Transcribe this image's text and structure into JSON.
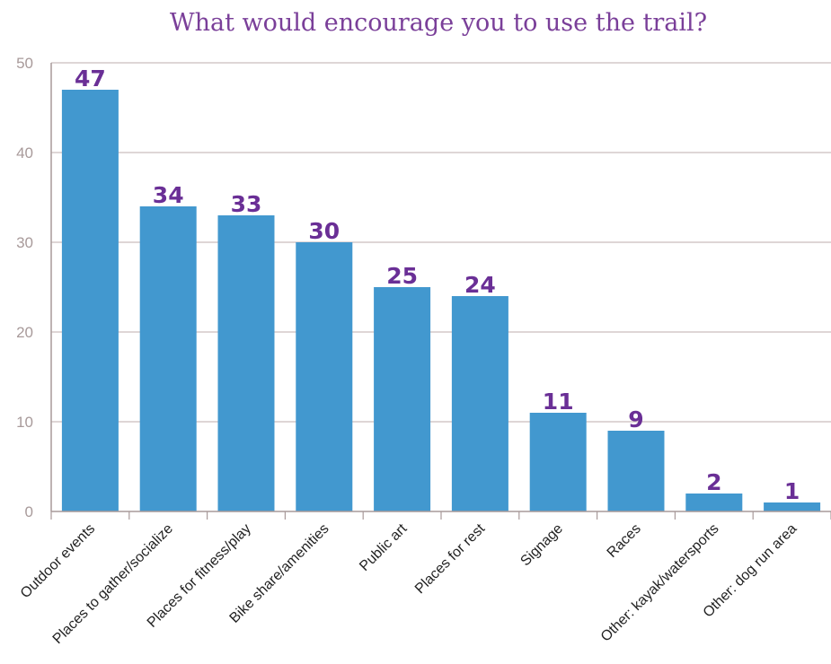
{
  "chart_data": {
    "type": "bar",
    "title": "What would encourage you to use the trail?",
    "xlabel": "",
    "ylabel": "",
    "categories": [
      "Outdoor events",
      "Places to gather/socialize",
      "Places for fitness/play",
      "Bike share/amenities",
      "Public art",
      "Places for rest",
      "Signage",
      "Races",
      "Other: kayak/watersports",
      "Other: dog run area"
    ],
    "values": [
      47,
      34,
      33,
      30,
      25,
      24,
      11,
      9,
      2,
      1
    ],
    "ylim": [
      0,
      50
    ],
    "yticks": [
      0,
      10,
      20,
      30,
      40,
      50
    ],
    "grid": true,
    "legend": "none",
    "colors": {
      "bar": "#4298cf",
      "title": "#7a3f99",
      "data_label": "#6a2f96",
      "grid": "#c9bdbd",
      "axis": "#a89a9a"
    }
  }
}
